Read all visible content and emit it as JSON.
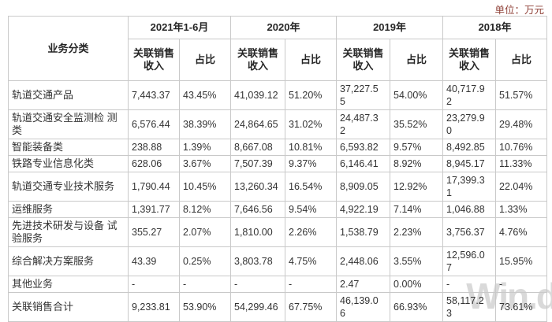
{
  "unit_label": "单位：万元",
  "watermark_text": "Win.d",
  "colors": {
    "unit_label_color": "#8f4037",
    "table_border": "#c9c9c9",
    "text": "#333333",
    "watermark": "#d9d9d9"
  },
  "table": {
    "corner_header": "业务分类",
    "year_headers": [
      "2021年1-6月",
      "2020年",
      "2019年",
      "2018年"
    ],
    "sub_headers": {
      "revenue": "关联销售\n收入",
      "ratio": "占比"
    },
    "rows": [
      {
        "label": "轨道交通产品",
        "cells": [
          "7,443.37",
          "43.45%",
          "41,039.12",
          "51.20%",
          "37,227.5\n5",
          "54.00%",
          "40,717.9\n2",
          "51.57%"
        ]
      },
      {
        "label": "轨道交通安全监测检 测\n类",
        "cells": [
          "6,576.44",
          "38.39%",
          "24,864.65",
          "31.02%",
          "24,487.3\n2",
          "35.52%",
          "23,279.9\n0",
          "29.48%"
        ]
      },
      {
        "label": "智能装备类",
        "cells": [
          "238.88",
          "1.39%",
          "8,667.08",
          "10.81%",
          "6,593.82",
          "9.57%",
          "8,492.85",
          "10.76%"
        ]
      },
      {
        "label": "铁路专业信息化类",
        "cells": [
          "628.06",
          "3.67%",
          "7,507.39",
          "9.37%",
          "6,146.41",
          "8.92%",
          "8,945.17",
          "11.33%"
        ]
      },
      {
        "label": "轨道交通专业技术服务",
        "cells": [
          "1,790.44",
          "10.45%",
          "13,260.34",
          "16.54%",
          "8,909.05",
          "12.92%",
          "17,399.3\n1",
          "22.04%"
        ]
      },
      {
        "label": "运维服务",
        "cells": [
          "1,391.77",
          "8.12%",
          "7,646.56",
          "9.54%",
          "4,922.19",
          "7.14%",
          "1,046.88",
          "1.33%"
        ]
      },
      {
        "label": "先进技术研发与设备 试\n验服务",
        "cells": [
          "355.27",
          "2.07%",
          "1,810.00",
          "2.26%",
          "1,538.79",
          "2.23%",
          "3,756.37",
          "4.76%"
        ]
      },
      {
        "label": "综合解决方案服务",
        "cells": [
          "43.39",
          "0.25%",
          "3,803.78",
          "4.75%",
          "2,448.06",
          "3.55%",
          "12,596.0\n7",
          "15.95%"
        ]
      },
      {
        "label": "其他业务",
        "cells": [
          "-",
          "-",
          "-",
          "-",
          "2.47",
          "0.00%",
          "-",
          "-"
        ]
      },
      {
        "label": "关联销售合计",
        "cells": [
          "9,233.81",
          "53.90%",
          "54,299.46",
          "67.75%",
          "46,139.0\n6",
          "66.93%",
          "58,117.2\n3",
          "73.61%"
        ]
      }
    ]
  }
}
